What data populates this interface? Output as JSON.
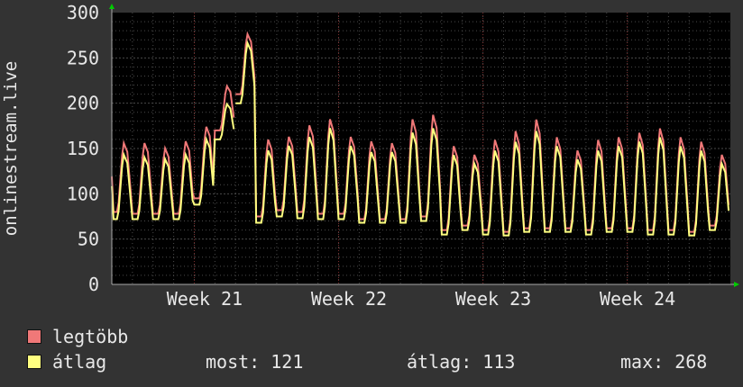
{
  "chart_data": {
    "type": "line",
    "ylabel": "onlinestream.live",
    "ylim": [
      0,
      300
    ],
    "y_ticks": [
      "0",
      "50",
      "100",
      "150",
      "200",
      "250",
      "300"
    ],
    "x_ticks": [
      "Week 21",
      "Week 22",
      "Week 23",
      "Week 24"
    ],
    "grid": true,
    "days": 30,
    "series": [
      {
        "name": "legtöbb",
        "color": "#f07878",
        "daily_max": [
          158,
          158,
          152,
          160,
          176,
          220,
          278,
          162,
          165,
          178,
          185,
          165,
          160,
          158,
          185,
          190,
          155,
          145,
          162,
          172,
          185,
          165,
          150,
          162,
          165,
          170,
          175,
          165,
          160,
          145
        ],
        "daily_min": [
          80,
          78,
          78,
          78,
          95,
          170,
          210,
          75,
          82,
          80,
          78,
          78,
          72,
          72,
          72,
          75,
          60,
          65,
          60,
          58,
          62,
          62,
          62,
          60,
          62,
          62,
          60,
          60,
          58,
          65
        ]
      },
      {
        "name": "átlag",
        "color": "#ffff80",
        "daily_max": [
          145,
          142,
          140,
          145,
          162,
          200,
          268,
          150,
          155,
          165,
          175,
          155,
          148,
          148,
          170,
          175,
          145,
          135,
          150,
          160,
          172,
          155,
          140,
          150,
          155,
          160,
          165,
          155,
          150,
          135
        ],
        "daily_min": [
          72,
          72,
          72,
          72,
          88,
          160,
          200,
          68,
          75,
          73,
          72,
          72,
          68,
          68,
          68,
          70,
          55,
          60,
          55,
          54,
          58,
          58,
          58,
          55,
          58,
          58,
          55,
          55,
          54,
          60
        ]
      }
    ]
  },
  "legend": [
    {
      "label": "legtöbb",
      "color": "#f07878"
    },
    {
      "label": "átlag",
      "color": "#ffff80"
    }
  ],
  "stats": {
    "most": "most: 121",
    "atlag": "átlag: 113",
    "max": "max: 268"
  }
}
